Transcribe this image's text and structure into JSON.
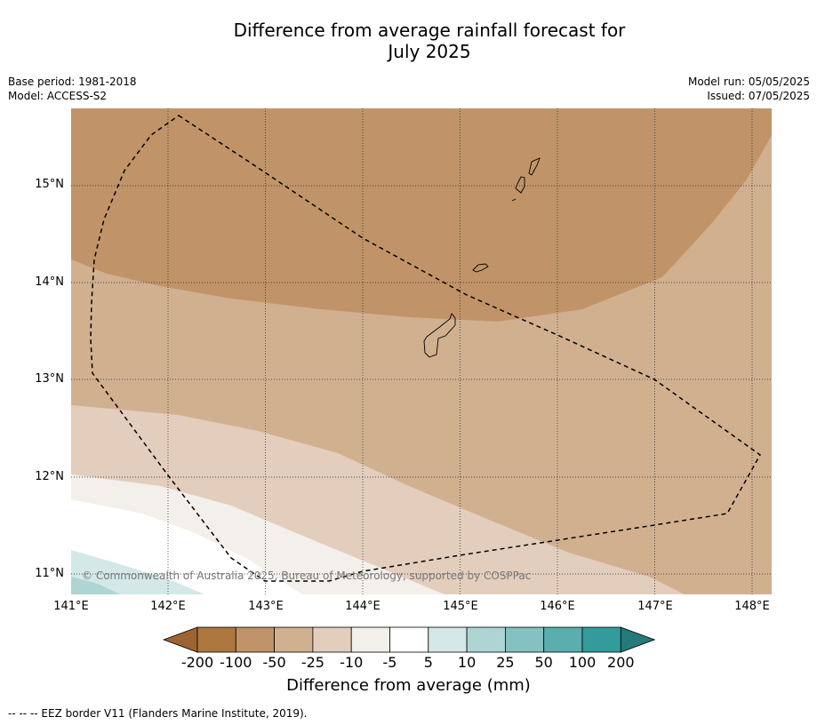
{
  "title_line1": "Difference from average rainfall forecast for",
  "title_line2": "July 2025",
  "meta_left": {
    "base_period": "Base period: 1981-2018",
    "model": "Model: ACCESS-S2"
  },
  "meta_right": {
    "model_run": "Model run: 05/05/2025",
    "issued": "Issued: 07/05/2025"
  },
  "lat_labels": [
    "15°N",
    "14°N",
    "13°N",
    "12°N",
    "11°N"
  ],
  "lon_labels": [
    "141°E",
    "142°E",
    "143°E",
    "144°E",
    "145°E",
    "146°E",
    "147°E",
    "148°E"
  ],
  "copyright": "© Commonwealth of Australia 2025, Bureau of Meteorology, supported by COSPPac",
  "colorbar": {
    "labels": [
      "-200",
      "-100",
      "-50",
      "-25",
      "-10",
      "-5",
      "5",
      "10",
      "25",
      "50",
      "100",
      "200"
    ],
    "colors": [
      "#9c6431",
      "#ae773f",
      "#c09468",
      "#d1b090",
      "#e3cebd",
      "#f3efea",
      "#ffffff",
      "#d4e8e8",
      "#aed4d4",
      "#86c1c1",
      "#5aaeae",
      "#339b9b",
      "#237a78"
    ],
    "title": "Difference from average (mm)"
  },
  "footnote": "--  --  -- EEZ border V11 (Flanders Marine Institute, 2019)."
}
